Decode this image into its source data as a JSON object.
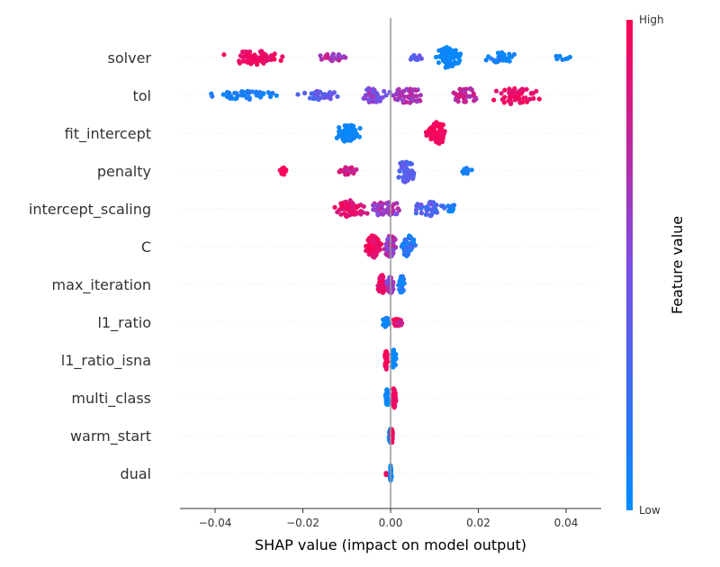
{
  "chart_data": {
    "type": "scatter",
    "subtype": "shap-beeswarm",
    "xlabel": "SHAP value (impact on model output)",
    "xlim": [
      -0.048,
      0.048
    ],
    "x_ticks": [
      -0.04,
      -0.02,
      0.0,
      0.02,
      0.04
    ],
    "x_tick_labels": [
      "−0.04",
      "−0.02",
      "0.00",
      "0.02",
      "0.04"
    ],
    "grid": false,
    "colorbar": {
      "title": "Feature value",
      "high_label": "High",
      "low_label": "Low",
      "high_color": "#ff0051",
      "low_color": "#008bfb",
      "placement": "right"
    },
    "features": [
      {
        "name": "solver",
        "clusters": [
          {
            "min": -0.044,
            "max": -0.024,
            "center": -0.031,
            "count": 70,
            "fv": [
              0.88,
              1.0
            ],
            "spread": 8
          },
          {
            "min": -0.016,
            "max": -0.003,
            "center": -0.013,
            "count": 22,
            "fv": [
              0.55,
              0.85
            ],
            "spread": 4
          },
          {
            "min": 0.003,
            "max": 0.009,
            "center": 0.006,
            "count": 12,
            "fv": [
              0.25,
              0.55
            ],
            "spread": 3
          },
          {
            "min": 0.009,
            "max": 0.017,
            "center": 0.013,
            "count": 80,
            "fv": [
              0.0,
              0.08
            ],
            "spread": 12
          },
          {
            "min": 0.021,
            "max": 0.031,
            "center": 0.025,
            "count": 35,
            "fv": [
              0.0,
              0.15
            ],
            "spread": 7
          },
          {
            "min": 0.035,
            "max": 0.044,
            "center": 0.039,
            "count": 8,
            "fv": [
              0.0,
              0.1
            ],
            "spread": 3
          }
        ]
      },
      {
        "name": "tol",
        "clusters": [
          {
            "min": -0.043,
            "max": -0.023,
            "center": -0.033,
            "count": 50,
            "fv": [
              0.0,
              0.2
            ],
            "spread": 5
          },
          {
            "min": -0.023,
            "max": -0.01,
            "center": -0.016,
            "count": 35,
            "fv": [
              0.25,
              0.5
            ],
            "spread": 5
          },
          {
            "min": -0.01,
            "max": 0.0,
            "center": -0.004,
            "count": 40,
            "fv": [
              0.4,
              0.7
            ],
            "spread": 9
          },
          {
            "min": 0.0,
            "max": 0.012,
            "center": 0.004,
            "count": 45,
            "fv": [
              0.55,
              0.8
            ],
            "spread": 9
          },
          {
            "min": 0.012,
            "max": 0.02,
            "center": 0.017,
            "count": 40,
            "fv": [
              0.65,
              0.85
            ],
            "spread": 10
          },
          {
            "min": 0.02,
            "max": 0.038,
            "center": 0.028,
            "count": 55,
            "fv": [
              0.85,
              1.0
            ],
            "spread": 10
          }
        ]
      },
      {
        "name": "fit_intercept",
        "clusters": [
          {
            "min": -0.014,
            "max": -0.006,
            "center": -0.01,
            "count": 60,
            "fv": [
              0.0,
              0.08
            ],
            "spread": 11
          },
          {
            "min": 0.008,
            "max": 0.015,
            "center": 0.0105,
            "count": 70,
            "fv": [
              0.92,
              1.0
            ],
            "spread": 13
          }
        ]
      },
      {
        "name": "penalty",
        "clusters": [
          {
            "min": -0.026,
            "max": -0.023,
            "center": -0.0245,
            "count": 15,
            "fv": [
              0.95,
              1.0
            ],
            "spread": 5
          },
          {
            "min": -0.013,
            "max": -0.006,
            "center": -0.0095,
            "count": 20,
            "fv": [
              0.7,
              0.9
            ],
            "spread": 5
          },
          {
            "min": 0.001,
            "max": 0.007,
            "center": 0.0035,
            "count": 60,
            "fv": [
              0.25,
              0.45
            ],
            "spread": 13
          },
          {
            "min": 0.015,
            "max": 0.019,
            "center": 0.017,
            "count": 12,
            "fv": [
              0.05,
              0.15
            ],
            "spread": 4
          }
        ]
      },
      {
        "name": "intercept_scaling",
        "clusters": [
          {
            "min": -0.015,
            "max": -0.005,
            "center": -0.009,
            "count": 60,
            "fv": [
              0.8,
              1.0
            ],
            "spread": 10
          },
          {
            "min": -0.005,
            "max": 0.004,
            "center": -0.001,
            "count": 45,
            "fv": [
              0.5,
              0.8
            ],
            "spread": 10
          },
          {
            "min": 0.004,
            "max": 0.015,
            "center": 0.009,
            "count": 40,
            "fv": [
              0.2,
              0.5
            ],
            "spread": 8
          },
          {
            "min": 0.012,
            "max": 0.016,
            "center": 0.014,
            "count": 12,
            "fv": [
              0.0,
              0.15
            ],
            "spread": 5
          }
        ]
      },
      {
        "name": "C",
        "clusters": [
          {
            "min": -0.007,
            "max": -0.002,
            "center": -0.004,
            "count": 70,
            "fv": [
              0.85,
              1.0
            ],
            "spread": 13
          },
          {
            "min": -0.002,
            "max": 0.002,
            "center": 0.0,
            "count": 60,
            "fv": [
              0.45,
              0.8
            ],
            "spread": 13
          },
          {
            "min": 0.002,
            "max": 0.0065,
            "center": 0.004,
            "count": 55,
            "fv": [
              0.0,
              0.3
            ],
            "spread": 13
          }
        ]
      },
      {
        "name": "max_iteration",
        "clusters": [
          {
            "min": -0.0035,
            "max": -0.001,
            "center": -0.002,
            "count": 50,
            "fv": [
              0.85,
              1.0
            ],
            "spread": 11
          },
          {
            "min": -0.001,
            "max": 0.0015,
            "center": 0.0,
            "count": 35,
            "fv": [
              0.45,
              0.75
            ],
            "spread": 10
          },
          {
            "min": 0.0015,
            "max": 0.0035,
            "center": 0.0025,
            "count": 35,
            "fv": [
              0.0,
              0.2
            ],
            "spread": 11
          }
        ]
      },
      {
        "name": "l1_ratio",
        "clusters": [
          {
            "min": -0.002,
            "max": 0.0,
            "center": -0.001,
            "count": 30,
            "fv": [
              0.0,
              0.15
            ],
            "spread": 6
          },
          {
            "min": 0.0,
            "max": 0.0035,
            "center": 0.0015,
            "count": 25,
            "fv": [
              0.75,
              1.0
            ],
            "spread": 5
          }
        ]
      },
      {
        "name": "l1_ratio_isna",
        "clusters": [
          {
            "min": -0.0015,
            "max": -0.0005,
            "center": -0.001,
            "count": 35,
            "fv": [
              0.9,
              1.0
            ],
            "spread": 11
          },
          {
            "min": 0.0,
            "max": 0.0015,
            "center": 0.0007,
            "count": 45,
            "fv": [
              0.0,
              0.08
            ],
            "spread": 12
          }
        ]
      },
      {
        "name": "multi_class",
        "clusters": [
          {
            "min": -0.0015,
            "max": -0.0003,
            "center": -0.0008,
            "count": 35,
            "fv": [
              0.0,
              0.1
            ],
            "spread": 10
          },
          {
            "min": 0.0,
            "max": 0.0015,
            "center": 0.0008,
            "count": 40,
            "fv": [
              0.9,
              1.0
            ],
            "spread": 12
          }
        ]
      },
      {
        "name": "warm_start",
        "clusters": [
          {
            "min": -0.0005,
            "max": 0.0003,
            "center": -0.0001,
            "count": 30,
            "fv": [
              0.0,
              0.1
            ],
            "spread": 8
          },
          {
            "min": 0.0001,
            "max": 0.0006,
            "center": 0.0003,
            "count": 25,
            "fv": [
              0.85,
              1.0
            ],
            "spread": 8
          }
        ]
      },
      {
        "name": "dual",
        "clusters": [
          {
            "min": -0.0012,
            "max": -0.0008,
            "center": -0.001,
            "count": 2,
            "fv": [
              0.9,
              1.0
            ],
            "spread": 2
          },
          {
            "min": -0.0003,
            "max": 0.0003,
            "center": 0.0,
            "count": 30,
            "fv": [
              0.0,
              0.08
            ],
            "spread": 9
          }
        ]
      }
    ]
  }
}
